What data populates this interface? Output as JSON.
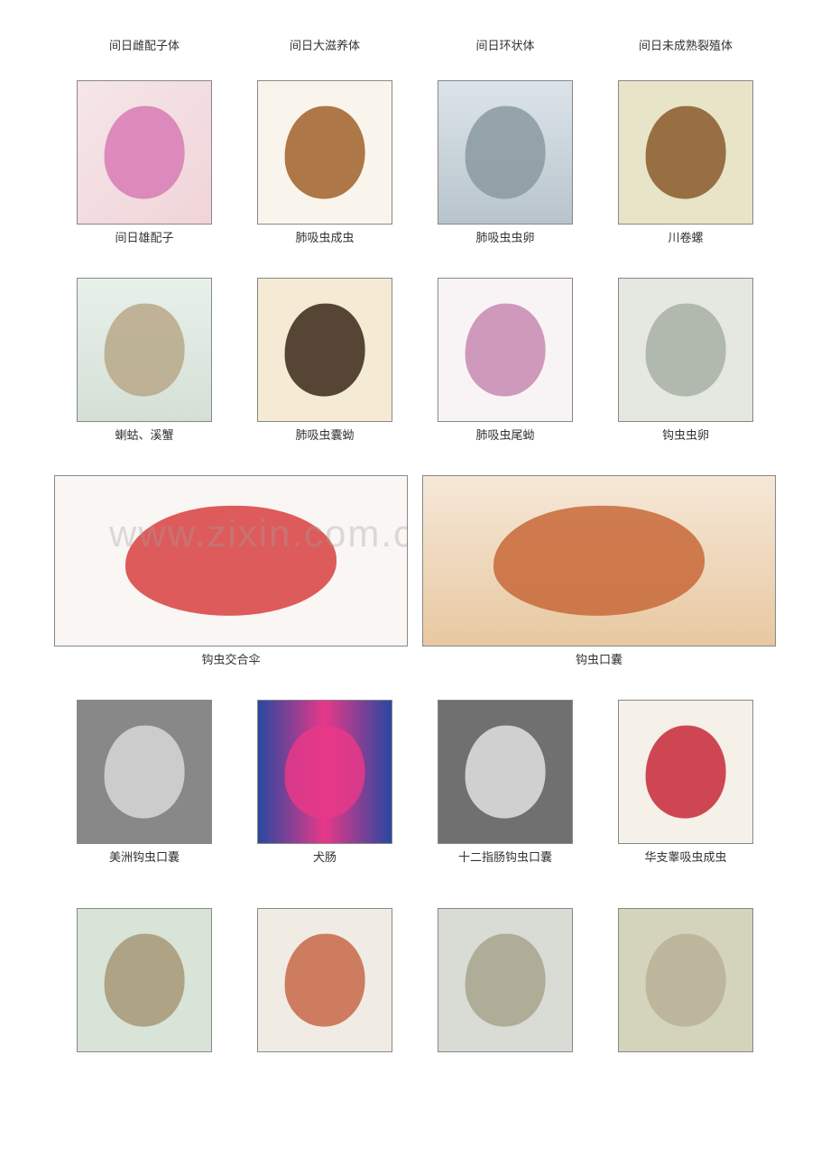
{
  "headers": [
    "间日雌配子体",
    "间日大滋养体",
    "间日环状体",
    "间日未成熟裂殖体"
  ],
  "row1": {
    "items": [
      {
        "caption": "间日雄配子",
        "bg": "linear-gradient(135deg,#f5e6e8,#f0d4d8)",
        "blob": "#d87ab5"
      },
      {
        "caption": "肺吸虫成虫",
        "bg": "#faf5ec",
        "blob": "#a0602a"
      },
      {
        "caption": "肺吸虫虫卵",
        "bg": "linear-gradient(#dce4ea,#b8c4cc)",
        "blob": "#8a9aa0"
      },
      {
        "caption": "川卷螺",
        "bg": "#e8e4c8",
        "blob": "#8a5a2a"
      }
    ]
  },
  "row2": {
    "items": [
      {
        "caption": "蝲蛄、溪蟹",
        "bg": "linear-gradient(#e8f0ea,#d4e0d6)",
        "blob": "#b8a888"
      },
      {
        "caption": "肺吸虫囊蚴",
        "bg": "#f5ead4",
        "blob": "#3a2818"
      },
      {
        "caption": "肺吸虫尾蚴",
        "bg": "#f8f4f6",
        "blob": "#c888b0"
      },
      {
        "caption": "钩虫虫卵",
        "bg": "#e4e8e0",
        "blob": "#a8b0a4"
      }
    ]
  },
  "wideRow": {
    "left": {
      "caption": "钩虫交合伞",
      "bg": "#faf6f4",
      "blob": "#d84040"
    },
    "right": {
      "caption": "钩虫口囊",
      "bg": "linear-gradient(#f5e8d8,#e8c8a0)",
      "blob": "#c86838"
    }
  },
  "row4": {
    "items": [
      {
        "caption": "美洲钩虫口囊",
        "bg": "#888888",
        "blob": "#d8d8d8"
      },
      {
        "caption": "犬肠",
        "bg": "linear-gradient(90deg,#2848a0,#e83888,#2848a0)",
        "blob": "#e83888"
      },
      {
        "caption": "十二指肠钩虫口囊",
        "bg": "#707070",
        "blob": "#e0e0e0"
      },
      {
        "caption": "华支睾吸虫成虫",
        "bg": "#f5f0e8",
        "blob": "#c82838"
      }
    ]
  },
  "row5": {
    "items": [
      {
        "caption": "",
        "bg": "#d8e4d8",
        "blob": "#a89878"
      },
      {
        "caption": "",
        "bg": "#f0ece4",
        "blob": "#c86848"
      },
      {
        "caption": "",
        "bg": "#d8dcd4",
        "blob": "#a8a48c"
      },
      {
        "caption": "",
        "bg": "#d4d4bc",
        "blob": "#b8b098"
      }
    ]
  },
  "watermark": "www.zixin.com.cn"
}
